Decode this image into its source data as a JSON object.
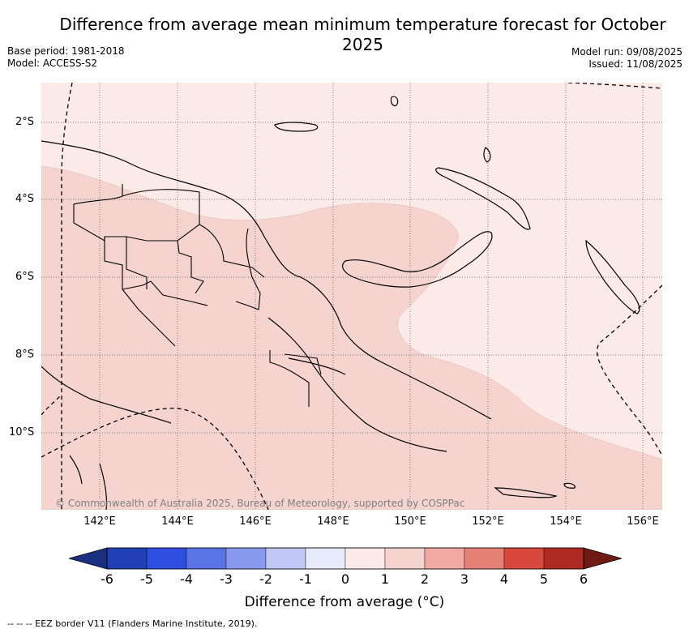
{
  "title": "Difference from average mean minimum temperature forecast for October 2025",
  "meta_left": [
    "Base period: 1981-2018",
    "Model: ACCESS-S2"
  ],
  "meta_right": [
    "Model run: 09/08/2025",
    "Issued: 11/08/2025"
  ],
  "map": {
    "region": "Papua New Guinea",
    "lat_labels": [
      "2°S",
      "4°S",
      "6°S",
      "8°S",
      "10°S"
    ],
    "lon_labels": [
      "142°E",
      "144°E",
      "146°E",
      "148°E",
      "150°E",
      "152°E",
      "154°E",
      "156°E"
    ],
    "zones": [
      {
        "name": "anomaly 0 to 1 °C",
        "color": "#fbeae7"
      },
      {
        "name": "anomaly 1 to 2 °C",
        "color": "#f5d4d0"
      }
    ],
    "credit": "© Commonwealth of Australia 2025, Bureau of Meteorology, supported by COSPPac"
  },
  "colorbar": {
    "ticks": [
      "-6",
      "-5",
      "-4",
      "-3",
      "-2",
      "-1",
      "0",
      "1",
      "2",
      "3",
      "4",
      "5",
      "6"
    ],
    "colors": [
      "#2240b5",
      "#2e4fe0",
      "#5a74e8",
      "#8899ee",
      "#c2c8f5",
      "#e8ebfa",
      "#fbeae7",
      "#f5d4d0",
      "#f0aaa3",
      "#e58177",
      "#d9483c",
      "#ae2a22"
    ],
    "under_color": "#1b2f80",
    "over_color": "#701a14",
    "label": "Difference from average (°C)"
  },
  "footnote": "-- -- -- EEZ border V11 (Flanders Marine Institute, 2019)."
}
